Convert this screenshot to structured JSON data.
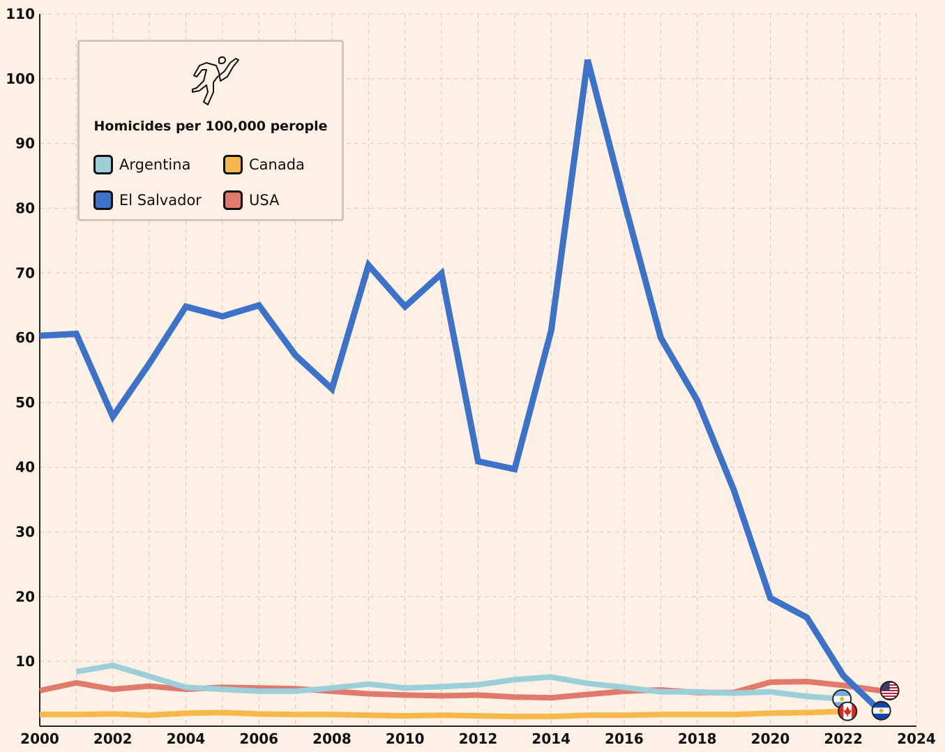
{
  "chart_data": {
    "type": "line",
    "title": "",
    "xlabel": "",
    "ylabel": "",
    "xlim": [
      2000,
      2024
    ],
    "ylim": [
      0,
      110
    ],
    "x_ticks": [
      2000,
      2002,
      2004,
      2006,
      2008,
      2010,
      2012,
      2014,
      2016,
      2018,
      2020,
      2022,
      2024
    ],
    "y_ticks": [
      10,
      20,
      30,
      40,
      50,
      60,
      70,
      80,
      90,
      100,
      110
    ],
    "grid": true,
    "legend": {
      "position": "top-left",
      "title": "Homicides per 100,000 perople",
      "icon": "chalk-outline-icon"
    },
    "series": [
      {
        "name": "Argentina",
        "color": "#9ccfd9",
        "end_marker": "argentina-flag-icon",
        "x": [
          2001,
          2002,
          2003,
          2004,
          2005,
          2006,
          2007,
          2008,
          2009,
          2010,
          2011,
          2012,
          2013,
          2014,
          2015,
          2016,
          2017,
          2018,
          2019,
          2020,
          2021,
          2022
        ],
        "values": [
          8.4,
          9.4,
          7.7,
          6.0,
          5.7,
          5.4,
          5.4,
          5.9,
          6.5,
          5.9,
          6.1,
          6.4,
          7.2,
          7.6,
          6.6,
          6.0,
          5.3,
          5.3,
          5.1,
          5.3,
          4.6,
          4.2
        ]
      },
      {
        "name": "Canada",
        "color": "#f7b84b",
        "end_marker": "canada-flag-icon",
        "x": [
          2000,
          2001,
          2002,
          2003,
          2004,
          2005,
          2006,
          2007,
          2008,
          2009,
          2010,
          2011,
          2012,
          2013,
          2014,
          2015,
          2016,
          2017,
          2018,
          2019,
          2020,
          2021,
          2022
        ],
        "values": [
          1.8,
          1.8,
          1.9,
          1.7,
          2.0,
          2.1,
          1.9,
          1.8,
          1.8,
          1.7,
          1.6,
          1.7,
          1.6,
          1.5,
          1.5,
          1.7,
          1.7,
          1.8,
          1.8,
          1.8,
          2.0,
          2.1,
          2.3
        ]
      },
      {
        "name": "El Salvador",
        "color": "#3d72c9",
        "end_marker": "el-salvador-flag-icon",
        "x": [
          2000,
          2001,
          2002,
          2003,
          2004,
          2005,
          2006,
          2007,
          2008,
          2009,
          2010,
          2011,
          2012,
          2013,
          2014,
          2015,
          2016,
          2017,
          2018,
          2019,
          2020,
          2021,
          2022,
          2023
        ],
        "values": [
          60.3,
          60.6,
          47.8,
          56.0,
          64.8,
          63.3,
          65.0,
          57.3,
          52.1,
          71.2,
          64.8,
          69.9,
          40.9,
          39.7,
          61.1,
          102.9,
          81.0,
          60.0,
          50.3,
          36.5,
          19.8,
          16.8,
          7.8,
          2.4
        ]
      },
      {
        "name": "USA",
        "color": "#df7a6c",
        "end_marker": "usa-flag-icon",
        "x": [
          2000,
          2001,
          2002,
          2003,
          2004,
          2005,
          2006,
          2007,
          2008,
          2009,
          2010,
          2011,
          2012,
          2013,
          2014,
          2015,
          2016,
          2017,
          2018,
          2019,
          2020,
          2021,
          2022,
          2023
        ],
        "values": [
          5.5,
          6.7,
          5.7,
          6.2,
          5.7,
          6.0,
          5.9,
          5.8,
          5.4,
          5.0,
          4.8,
          4.7,
          4.8,
          4.5,
          4.4,
          4.9,
          5.4,
          5.6,
          5.2,
          5.2,
          6.8,
          6.9,
          6.3,
          5.5
        ]
      }
    ]
  }
}
